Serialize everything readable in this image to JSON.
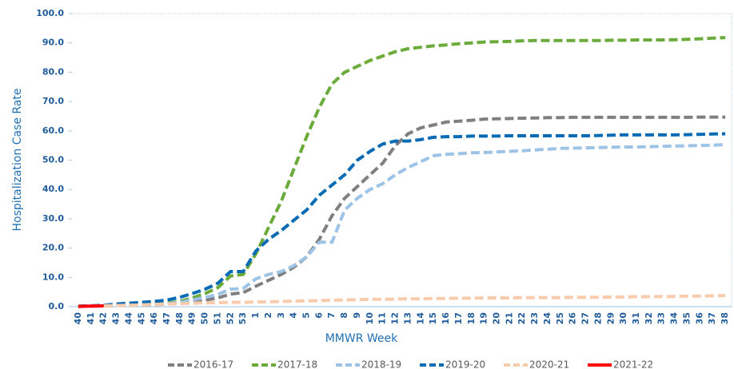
{
  "chart_data": {
    "type": "line",
    "y_label": "Hospitalization Case Rate",
    "x_label": "MMWR Week",
    "categories": [
      "40",
      "41",
      "42",
      "43",
      "44",
      "45",
      "46",
      "47",
      "48",
      "49",
      "50",
      "51",
      "52",
      "53",
      "1",
      "2",
      "3",
      "4",
      "5",
      "6",
      "7",
      "8",
      "9",
      "10",
      "11",
      "12",
      "13",
      "14",
      "15",
      "16",
      "17",
      "18",
      "19",
      "20",
      "21",
      "22",
      "23",
      "24",
      "25",
      "26",
      "27",
      "28",
      "29",
      "30",
      "31",
      "32",
      "33",
      "34",
      "35",
      "36",
      "37",
      "38"
    ],
    "ylim": [
      0,
      100
    ],
    "yticks": [
      {
        "value": 0,
        "label": "0.0"
      },
      {
        "value": 10,
        "label": "10.0"
      },
      {
        "value": 20,
        "label": "20.0"
      },
      {
        "value": 30,
        "label": "30.0"
      },
      {
        "value": 40,
        "label": "40.0"
      },
      {
        "value": 50,
        "label": "50.0"
      },
      {
        "value": 60,
        "label": "60.0"
      },
      {
        "value": 70,
        "label": "70.0"
      },
      {
        "value": 80,
        "label": "80.0"
      },
      {
        "value": 90,
        "label": "90.0"
      },
      {
        "value": 100,
        "label": "100.0"
      }
    ],
    "legend": "bottom",
    "series": [
      {
        "name": "2016-17",
        "color": "#7f7f7f",
        "dashed": true,
        "values": [
          0.1,
          0.2,
          0.3,
          0.4,
          0.5,
          0.6,
          0.7,
          0.9,
          1.2,
          1.6,
          2.2,
          3,
          4.3,
          4.8,
          7,
          9,
          11,
          13.5,
          17,
          23,
          31,
          37,
          41,
          45,
          49,
          55,
          59,
          61,
          62,
          63,
          63.3,
          63.6,
          64,
          64.1,
          64.2,
          64.3,
          64.4,
          64.5,
          64.5,
          64.6,
          64.6,
          64.6,
          64.6,
          64.6,
          64.6,
          64.6,
          64.6,
          64.6,
          64.6,
          64.7,
          64.7,
          64.7
        ]
      },
      {
        "name": "2017-18",
        "color": "#6aab3b",
        "dashed": true,
        "values": [
          0.1,
          0.2,
          0.3,
          0.4,
          0.5,
          0.7,
          0.9,
          1.2,
          1.8,
          3,
          4.5,
          6.5,
          10.5,
          11,
          18,
          27,
          36,
          47,
          58,
          68,
          76,
          80,
          82,
          84,
          85.5,
          87,
          88,
          88.5,
          89,
          89.3,
          89.7,
          90,
          90.3,
          90.4,
          90.5,
          90.7,
          90.8,
          90.8,
          90.8,
          90.8,
          90.8,
          90.8,
          90.9,
          90.9,
          91,
          91,
          91,
          91.1,
          91.2,
          91.4,
          91.6,
          91.8
        ]
      },
      {
        "name": "2018-19",
        "color": "#9dc3e6",
        "dashed": true,
        "values": [
          0.1,
          0.2,
          0.3,
          0.4,
          0.5,
          0.6,
          0.8,
          1,
          1.5,
          2.3,
          3.2,
          4.2,
          6,
          6.2,
          9.5,
          11,
          12,
          14,
          17,
          22,
          22,
          33,
          37,
          40,
          42,
          45,
          47.5,
          49.5,
          51.5,
          52,
          52.2,
          52.5,
          52.6,
          52.8,
          53,
          53.2,
          53.5,
          53.7,
          54,
          54.1,
          54.2,
          54.3,
          54.4,
          54.5,
          54.5,
          54.6,
          54.7,
          54.8,
          54.9,
          55,
          55.1,
          55.3
        ]
      },
      {
        "name": "2019-20",
        "color": "#0a6bb5",
        "dashed": true,
        "values": [
          0.2,
          0.3,
          0.5,
          0.9,
          1.2,
          1.5,
          1.8,
          2.3,
          3.2,
          4.5,
          6,
          8,
          12,
          12,
          19,
          23,
          26,
          29.5,
          33,
          38,
          41.5,
          45,
          50,
          53,
          55.5,
          56.5,
          56.5,
          57,
          57.8,
          58,
          58,
          58.2,
          58.2,
          58.2,
          58.3,
          58.3,
          58.3,
          58.3,
          58.3,
          58.3,
          58.3,
          58.4,
          58.5,
          58.6,
          58.6,
          58.6,
          58.6,
          58.6,
          58.7,
          58.8,
          58.9,
          59
        ]
      },
      {
        "name": "2020-21",
        "color": "#f8cbad",
        "dashed": true,
        "values": [
          0.1,
          0.2,
          0.3,
          0.4,
          0.5,
          0.6,
          0.8,
          0.9,
          1.1,
          1.2,
          1.3,
          1.4,
          1.5,
          1.5,
          1.6,
          1.7,
          1.8,
          1.9,
          2,
          2.1,
          2.2,
          2.3,
          2.4,
          2.5,
          2.5,
          2.6,
          2.7,
          2.7,
          2.8,
          2.8,
          2.9,
          2.9,
          3,
          3,
          3,
          3.1,
          3.1,
          3.1,
          3.1,
          3.2,
          3.2,
          3.2,
          3.3,
          3.3,
          3.4,
          3.4,
          3.5,
          3.5,
          3.6,
          3.6,
          3.7,
          3.8
        ]
      },
      {
        "name": "2021-22",
        "color": "#ff0000",
        "dashed": false,
        "values": [
          0.1,
          0.2,
          0.3,
          null,
          null,
          null,
          null,
          null,
          null,
          null,
          null,
          null,
          null,
          null,
          null,
          null,
          null,
          null,
          null,
          null,
          null,
          null,
          null,
          null,
          null,
          null,
          null,
          null,
          null,
          null,
          null,
          null,
          null,
          null,
          null,
          null,
          null,
          null,
          null,
          null,
          null,
          null,
          null,
          null,
          null,
          null,
          null,
          null,
          null,
          null,
          null,
          null
        ]
      }
    ]
  }
}
